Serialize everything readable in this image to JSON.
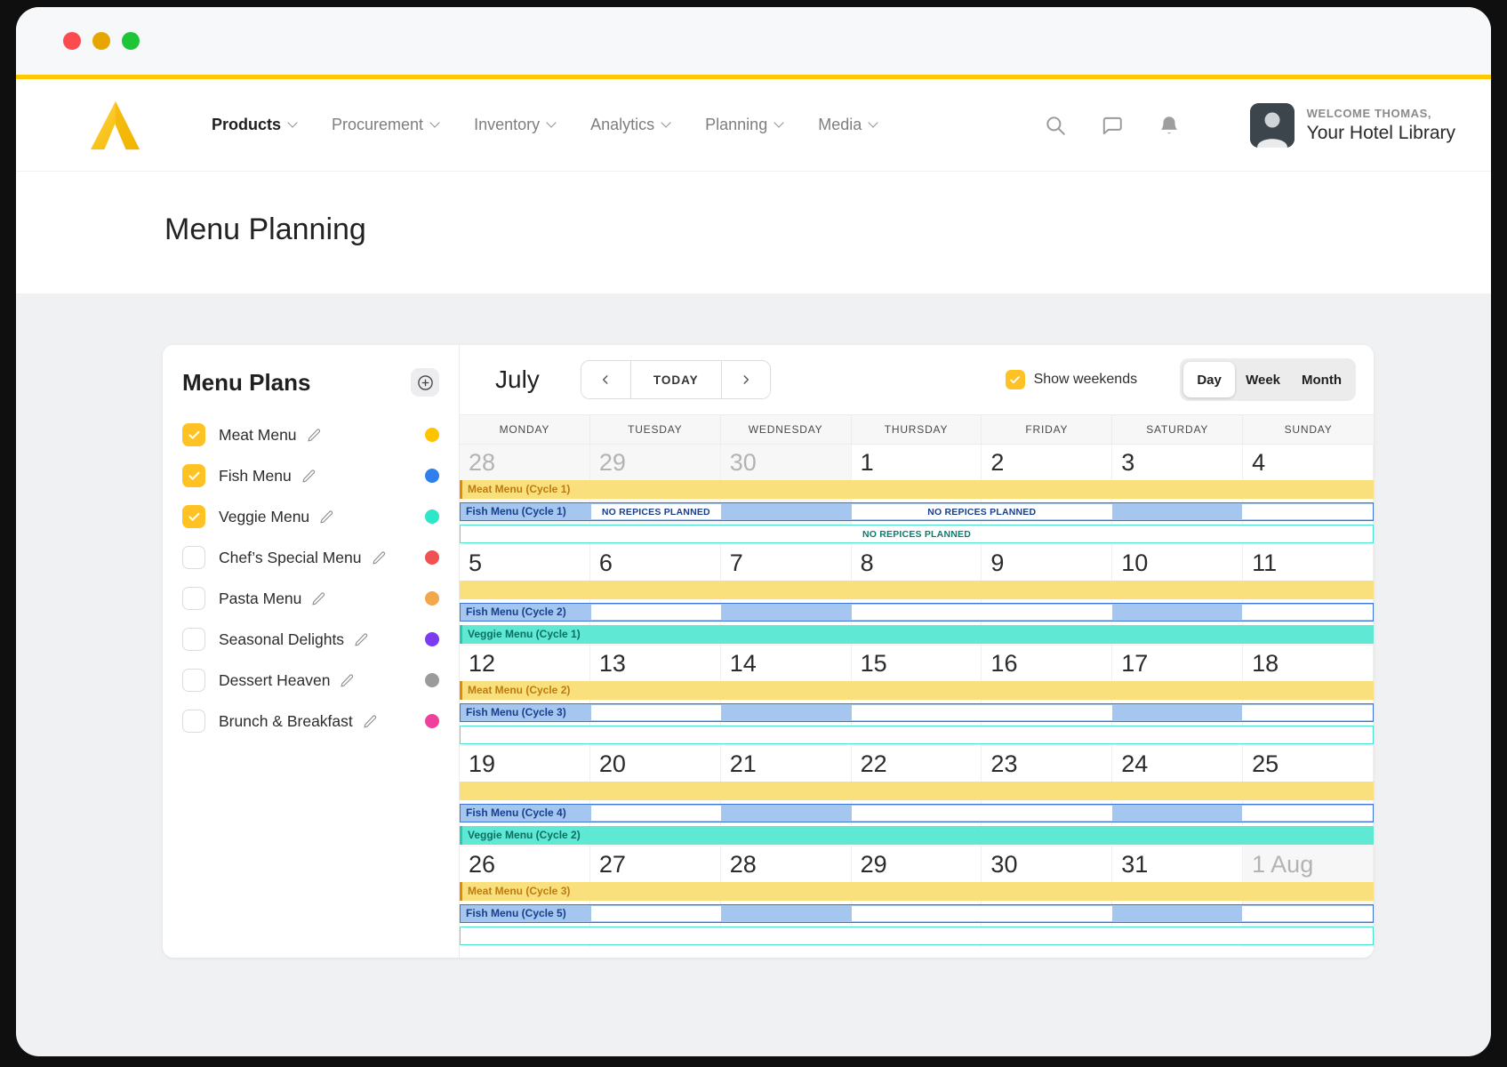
{
  "window": {
    "traffic_lights": [
      "close",
      "minimize",
      "maximize"
    ],
    "accent_color": "#ffc800"
  },
  "nav": {
    "items": [
      {
        "label": "Products",
        "active": true
      },
      {
        "label": "Procurement",
        "active": false
      },
      {
        "label": "Inventory",
        "active": false
      },
      {
        "label": "Analytics",
        "active": false
      },
      {
        "label": "Planning",
        "active": false
      },
      {
        "label": "Media",
        "active": false
      }
    ],
    "icons": [
      "search-icon",
      "chat-icon",
      "bell-icon"
    ],
    "welcome": "WELCOME THOMAS,",
    "account_name": "Your Hotel Library"
  },
  "page": {
    "title": "Menu Planning"
  },
  "sidebar": {
    "title": "Menu Plans",
    "add_button": "plus",
    "items": [
      {
        "label": "Meat Menu",
        "checked": true,
        "color": "#ffc400"
      },
      {
        "label": "Fish Menu",
        "checked": true,
        "color": "#2f80ed"
      },
      {
        "label": "Veggie Menu",
        "checked": true,
        "color": "#2ee6c8"
      },
      {
        "label": "Chef’s Special Menu",
        "checked": false,
        "color": "#f15152"
      },
      {
        "label": "Pasta Menu",
        "checked": false,
        "color": "#f2a74b"
      },
      {
        "label": "Seasonal Delights",
        "checked": false,
        "color": "#7c3bf0"
      },
      {
        "label": "Dessert Heaven",
        "checked": false,
        "color": "#9b9b9b"
      },
      {
        "label": "Brunch & Breakfast",
        "checked": false,
        "color": "#f0409c"
      }
    ]
  },
  "calendar": {
    "month_label": "July",
    "today_label": "TODAY",
    "show_weekends_label": "Show weekends",
    "show_weekends_checked": true,
    "view_options": [
      "Day",
      "Week",
      "Month"
    ],
    "active_view": "Day",
    "day_headers": [
      "MONDAY",
      "TUESDAY",
      "WEDNESDAY",
      "THURSDAY",
      "FRIDAY",
      "SATURDAY",
      "SUNDAY"
    ],
    "no_recipes_text": "NO REPICES PLANNED",
    "bar_colors": {
      "meat_fill": "#fae07c",
      "meat_edge": "#e28c05",
      "meat_text": "#bd7b10",
      "fish_fill": "#a5c6ee",
      "fish_edge": "#3d74d8",
      "fish_text": "#16408f",
      "veggie_fill": "#5fe8d3",
      "veggie_edge": "#49e2ce",
      "veggie_text": "#0b6e62"
    },
    "weeks": [
      {
        "dates": [
          {
            "label": "28",
            "muted": true
          },
          {
            "label": "29",
            "muted": true
          },
          {
            "label": "30",
            "muted": true
          },
          {
            "label": "1",
            "muted": false
          },
          {
            "label": "2",
            "muted": false
          },
          {
            "label": "3",
            "muted": false
          },
          {
            "label": "4",
            "muted": false
          }
        ],
        "bars": [
          {
            "kind": "meat",
            "label": "Meat Menu (Cycle 1)"
          },
          {
            "kind": "fish",
            "label": "Fish Menu (Cycle 1)",
            "gaps": [
              {
                "col": 1,
                "span": 1,
                "text": "NO REPICES PLANNED"
              },
              {
                "col": 3,
                "span": 2,
                "text": "NO REPICES PLANNED"
              },
              {
                "col": 6,
                "span": 1,
                "text": ""
              }
            ]
          },
          {
            "kind": "veggie",
            "filled": false,
            "label": "",
            "center_text": "NO REPICES PLANNED"
          }
        ]
      },
      {
        "dates": [
          {
            "label": "5",
            "muted": false
          },
          {
            "label": "6",
            "muted": false
          },
          {
            "label": "7",
            "muted": false
          },
          {
            "label": "8",
            "muted": false
          },
          {
            "label": "9",
            "muted": false
          },
          {
            "label": "10",
            "muted": false
          },
          {
            "label": "11",
            "muted": false
          }
        ],
        "bars": [
          {
            "kind": "meat",
            "label": ""
          },
          {
            "kind": "fish",
            "label": "Fish Menu (Cycle 2)",
            "gaps": [
              {
                "col": 1,
                "span": 1,
                "text": ""
              },
              {
                "col": 3,
                "span": 2,
                "text": ""
              },
              {
                "col": 6,
                "span": 1,
                "text": ""
              }
            ]
          },
          {
            "kind": "veggie",
            "filled": true,
            "label": "Veggie Menu (Cycle 1)",
            "center_text": ""
          }
        ]
      },
      {
        "dates": [
          {
            "label": "12",
            "muted": false
          },
          {
            "label": "13",
            "muted": false
          },
          {
            "label": "14",
            "muted": false
          },
          {
            "label": "15",
            "muted": false
          },
          {
            "label": "16",
            "muted": false
          },
          {
            "label": "17",
            "muted": false
          },
          {
            "label": "18",
            "muted": false
          }
        ],
        "bars": [
          {
            "kind": "meat",
            "label": "Meat Menu (Cycle 2)"
          },
          {
            "kind": "fish",
            "label": "Fish Menu (Cycle 3)",
            "gaps": [
              {
                "col": 1,
                "span": 1,
                "text": ""
              },
              {
                "col": 3,
                "span": 2,
                "text": ""
              },
              {
                "col": 6,
                "span": 1,
                "text": ""
              }
            ]
          },
          {
            "kind": "veggie",
            "filled": false,
            "label": "",
            "center_text": ""
          }
        ]
      },
      {
        "dates": [
          {
            "label": "19",
            "muted": false
          },
          {
            "label": "20",
            "muted": false
          },
          {
            "label": "21",
            "muted": false
          },
          {
            "label": "22",
            "muted": false
          },
          {
            "label": "23",
            "muted": false
          },
          {
            "label": "24",
            "muted": false
          },
          {
            "label": "25",
            "muted": false
          }
        ],
        "bars": [
          {
            "kind": "meat",
            "label": ""
          },
          {
            "kind": "fish",
            "label": "Fish Menu (Cycle 4)",
            "gaps": [
              {
                "col": 1,
                "span": 1,
                "text": ""
              },
              {
                "col": 3,
                "span": 2,
                "text": ""
              },
              {
                "col": 6,
                "span": 1,
                "text": ""
              }
            ]
          },
          {
            "kind": "veggie",
            "filled": true,
            "label": "Veggie Menu (Cycle 2)",
            "center_text": ""
          }
        ]
      },
      {
        "dates": [
          {
            "label": "26",
            "muted": false
          },
          {
            "label": "27",
            "muted": false
          },
          {
            "label": "28",
            "muted": false
          },
          {
            "label": "29",
            "muted": false
          },
          {
            "label": "30",
            "muted": false
          },
          {
            "label": "31",
            "muted": false
          },
          {
            "label": "1 Aug",
            "muted": true
          }
        ],
        "bars": [
          {
            "kind": "meat",
            "label": "Meat Menu (Cycle 3)"
          },
          {
            "kind": "fish",
            "label": "Fish Menu (Cycle 5)",
            "gaps": [
              {
                "col": 1,
                "span": 1,
                "text": ""
              },
              {
                "col": 3,
                "span": 2,
                "text": ""
              },
              {
                "col": 6,
                "span": 1,
                "text": ""
              }
            ]
          },
          {
            "kind": "veggie",
            "filled": false,
            "label": "",
            "center_text": ""
          }
        ]
      }
    ]
  }
}
